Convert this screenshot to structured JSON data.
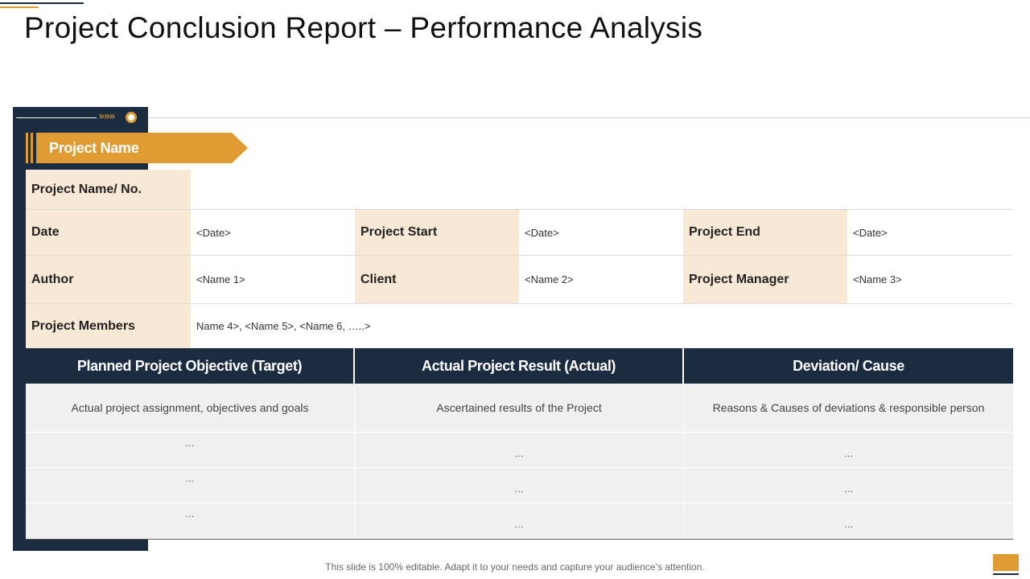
{
  "slide": {
    "title": "Project Conclusion Report – Performance Analysis",
    "chevrons": "»»»",
    "section_label": "Project Name",
    "footer_note": "This slide is 100% editable. Adapt it to your needs and capture your audience’s attention."
  },
  "colors": {
    "navy": "#1b2b40",
    "gold": "#e09b32",
    "label_bg": "#f8e9d6",
    "table_bg": "#f0f0f0"
  },
  "info": {
    "name_no_label": "Project Name/ No.",
    "date_label": "Date",
    "date_value": "<Date>",
    "start_label": "Project Start",
    "start_value": "<Date>",
    "end_label": "Project End",
    "end_value": "<Date>",
    "author_label": "Author",
    "author_value": "<Name 1>",
    "client_label": "Client",
    "client_value": "<Name 2>",
    "manager_label": "Project Manager",
    "manager_value": "<Name 3>",
    "members_label": "Project Members",
    "members_value": "Name 4>, <Name 5>, <Name 6, …..>"
  },
  "table": {
    "headers": [
      "Planned Project Objective (Target)",
      "Actual Project Result (Actual)",
      "Deviation/ Cause"
    ],
    "rows": [
      [
        "Actual project assignment, objectives and goals",
        "Ascertained results of the Project",
        "Reasons & Causes of deviations & responsible person"
      ],
      [
        "…",
        "…",
        "…"
      ],
      [
        "…",
        "…",
        "…"
      ],
      [
        "…",
        "…",
        "…"
      ]
    ]
  }
}
